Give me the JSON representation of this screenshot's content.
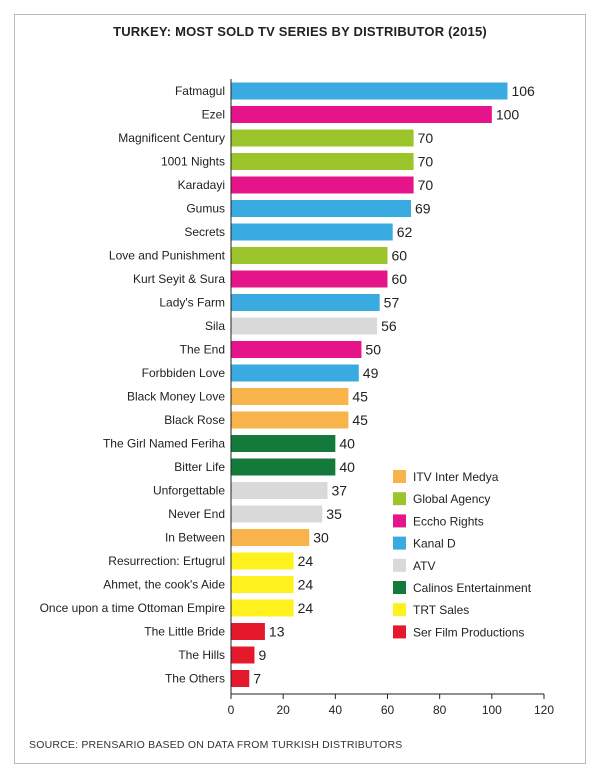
{
  "chart_data": {
    "type": "bar",
    "orientation": "horizontal",
    "title": "TURKEY: MOST SOLD TV SERIES BY DISTRIBUTOR (2015)",
    "source": "SOURCE: PRENSARIO BASED ON DATA FROM TURKISH DISTRIBUTORS",
    "xlim": [
      0,
      120
    ],
    "xticks": [
      0,
      20,
      40,
      60,
      80,
      100,
      120
    ],
    "grid": false,
    "legend_position": "bottom-right",
    "categories": [
      "Fatmagul",
      "Ezel",
      "Magnificent Century",
      "1001 Nights",
      "Karadayi",
      "Gumus",
      "Secrets",
      "Love and Punishment",
      "Kurt Seyit & Sura",
      "Lady's Farm",
      "Sila",
      "The End",
      "Forbbiden Love",
      "Black Money Love",
      "Black Rose",
      "The Girl Named Feriha",
      "Bitter Life",
      "Unforgettable",
      "Never End",
      "In Between",
      "Resurrection: Ertugrul",
      "Ahmet, the cook's Aide",
      "Once upon a time Ottoman Empire",
      "The Little Bride",
      "The Hills",
      "The Others"
    ],
    "values": [
      106,
      100,
      70,
      70,
      70,
      69,
      62,
      60,
      60,
      57,
      56,
      50,
      49,
      45,
      45,
      40,
      40,
      37,
      35,
      30,
      24,
      24,
      24,
      13,
      9,
      7
    ],
    "distributor": [
      "Kanal D",
      "Eccho Rights",
      "Global Agency",
      "Global Agency",
      "Eccho Rights",
      "Kanal D",
      "Kanal D",
      "Global Agency",
      "Eccho Rights",
      "Kanal D",
      "ATV",
      "Eccho Rights",
      "Kanal D",
      "ITV Inter Medya",
      "ITV Inter Medya",
      "Calinos Entertainment",
      "Calinos Entertainment",
      "ATV",
      "ATV",
      "ITV Inter Medya",
      "TRT Sales",
      "TRT Sales",
      "TRT Sales",
      "Ser Film Productions",
      "Ser Film Productions",
      "Ser Film Productions"
    ],
    "legend": [
      {
        "name": "ITV Inter Medya",
        "color": "#f8b44a"
      },
      {
        "name": "Global Agency",
        "color": "#9bc52a"
      },
      {
        "name": "Eccho Rights",
        "color": "#e5148a"
      },
      {
        "name": "Kanal D",
        "color": "#3aabe0"
      },
      {
        "name": "ATV",
        "color": "#d9d9d9"
      },
      {
        "name": "Calinos Entertainment",
        "color": "#137a3b"
      },
      {
        "name": "TRT Sales",
        "color": "#fff11e"
      },
      {
        "name": "Ser Film Productions",
        "color": "#e4192b"
      }
    ]
  }
}
